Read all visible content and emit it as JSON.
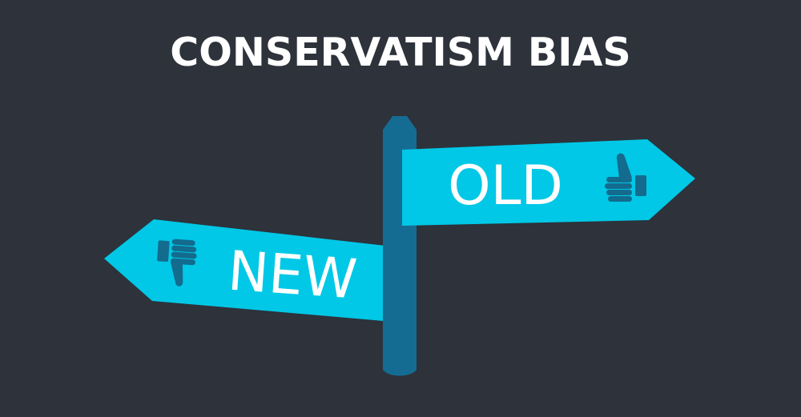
{
  "title": "CONSERVATISM BIAS",
  "signs": {
    "old": {
      "label": "OLD",
      "icon": "thumbs-up-icon"
    },
    "new": {
      "label": "NEW",
      "icon": "thumbs-down-icon"
    }
  },
  "colors": {
    "background": "#2d323b",
    "sign": "#00c8e6",
    "post": "#156c92",
    "icon": "#136b8e",
    "text": "#ffffff"
  }
}
